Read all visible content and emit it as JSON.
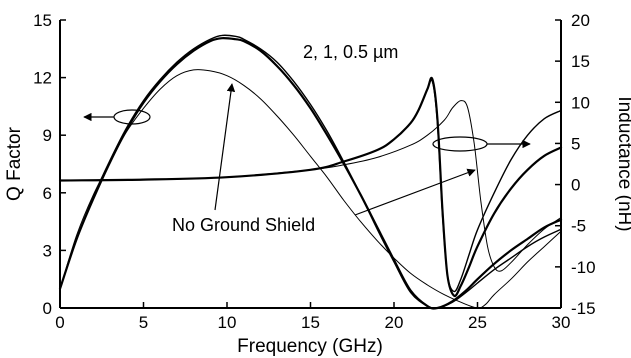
{
  "chart_data": {
    "type": "line",
    "xlabel": "Frequency (GHz)",
    "ylabel_left": "Q Factor",
    "ylabel_right": "Inductance (nH)",
    "xlim": [
      0,
      30
    ],
    "ylim_left": [
      0,
      15
    ],
    "ylim_right": [
      -15,
      20
    ],
    "xticks": [
      0,
      5,
      10,
      15,
      20,
      25,
      30
    ],
    "yticks_left": [
      0,
      3,
      6,
      9,
      12,
      15
    ],
    "yticks_right": [
      -15,
      -10,
      -5,
      0,
      5,
      10,
      15,
      20
    ],
    "grid": false,
    "annotations": {
      "thickness_label": "2, 1, 0.5 µm",
      "shield_label": "No Ground Shield"
    },
    "series": [
      {
        "axis": "left",
        "style": "thick",
        "x": [
          0,
          1,
          2,
          3,
          4,
          5,
          6,
          7,
          8,
          9,
          9.7,
          10.5,
          11,
          12,
          13,
          14,
          15,
          16,
          17,
          18,
          19,
          20,
          21,
          22,
          22.6,
          23.5,
          24.3,
          25,
          26,
          27,
          28,
          29,
          30
        ],
        "y": [
          1,
          3.6,
          5.7,
          7.6,
          9.3,
          10.7,
          11.8,
          12.7,
          13.4,
          13.9,
          14.05,
          14.0,
          13.9,
          13.4,
          12.6,
          11.6,
          10.4,
          9.0,
          7.5,
          5.9,
          4.2,
          2.5,
          0.9,
          0.1,
          0,
          0.35,
          0.9,
          1.5,
          2.3,
          3.0,
          3.6,
          4.2,
          4.6
        ]
      },
      {
        "axis": "left",
        "style": "medium",
        "x": [
          0,
          1,
          2,
          3,
          4,
          5,
          6,
          7,
          8,
          9,
          9.7,
          10.5,
          11,
          12,
          13,
          14,
          15,
          16,
          17,
          18,
          19,
          20,
          21,
          22,
          22.6,
          23.5,
          24.3,
          25,
          26,
          27,
          28,
          29,
          30
        ],
        "y": [
          1,
          3.6,
          5.8,
          7.7,
          9.4,
          10.8,
          11.9,
          12.8,
          13.5,
          14.0,
          14.2,
          14.15,
          14.0,
          13.5,
          12.8,
          11.8,
          10.6,
          9.2,
          7.6,
          5.9,
          4.1,
          2.4,
          0.8,
          0.1,
          0,
          0.3,
          0.8,
          1.3,
          2.0,
          2.6,
          3.2,
          3.7,
          4.1
        ]
      },
      {
        "axis": "left",
        "style": "thin",
        "x": [
          0,
          1,
          2,
          3,
          4,
          5,
          6,
          7,
          8,
          9,
          10,
          11,
          12,
          13,
          14,
          15,
          16,
          17,
          18,
          19,
          20,
          21,
          22,
          23,
          24,
          25,
          25.5,
          26,
          27,
          28,
          29,
          30
        ],
        "y": [
          1,
          3.8,
          5.9,
          7.6,
          9.2,
          10.4,
          11.4,
          12.1,
          12.4,
          12.35,
          12.1,
          11.6,
          10.9,
          10.0,
          9.0,
          7.9,
          6.8,
          5.6,
          4.5,
          3.5,
          2.6,
          1.8,
          1.2,
          0.7,
          0.3,
          0,
          0.2,
          0.7,
          1.5,
          2.4,
          3.2,
          4.0
        ]
      },
      {
        "axis": "right",
        "style": "thick",
        "x": [
          0,
          5,
          10,
          15,
          17,
          19,
          20,
          21,
          21.5,
          22,
          22.3,
          22.6,
          22.9,
          23.2,
          23.6,
          24,
          24.5,
          25,
          26,
          27,
          28,
          29,
          30
        ],
        "y": [
          0.5,
          0.6,
          0.9,
          1.8,
          2.8,
          4.2,
          5.5,
          7.5,
          9.2,
          11.6,
          12.8,
          8,
          -3,
          -11,
          -13.5,
          -12.3,
          -10,
          -7.5,
          -3.5,
          -0.5,
          1.8,
          3.5,
          4.5
        ]
      },
      {
        "axis": "right",
        "style": "medium",
        "x": [
          0,
          5,
          10,
          15,
          17,
          19,
          20,
          21,
          21.5,
          22,
          22.3,
          22.6,
          22.9,
          23.2,
          23.6,
          24,
          24.5,
          25,
          26,
          27,
          28,
          29,
          30
        ],
        "y": [
          0.5,
          0.6,
          0.9,
          1.8,
          2.8,
          4.2,
          5.5,
          7.5,
          9.2,
          11.6,
          12.5,
          7.5,
          -3.5,
          -11,
          -13,
          -11.5,
          -8.5,
          -5.5,
          -1,
          3,
          6,
          8,
          9
        ]
      },
      {
        "axis": "right",
        "style": "thin",
        "x": [
          0,
          5,
          10,
          15,
          17,
          19,
          21,
          22,
          23,
          23.5,
          24,
          24.4,
          24.8,
          25.2,
          25.6,
          26,
          26.4,
          27,
          28,
          29,
          30
        ],
        "y": [
          0.5,
          0.6,
          0.9,
          1.8,
          2.4,
          3.3,
          4.8,
          6,
          7.8,
          9.3,
          10.2,
          9.4,
          5,
          -2,
          -7.5,
          -10,
          -10.5,
          -9.5,
          -7.3,
          -5.4,
          -4
        ]
      }
    ]
  }
}
